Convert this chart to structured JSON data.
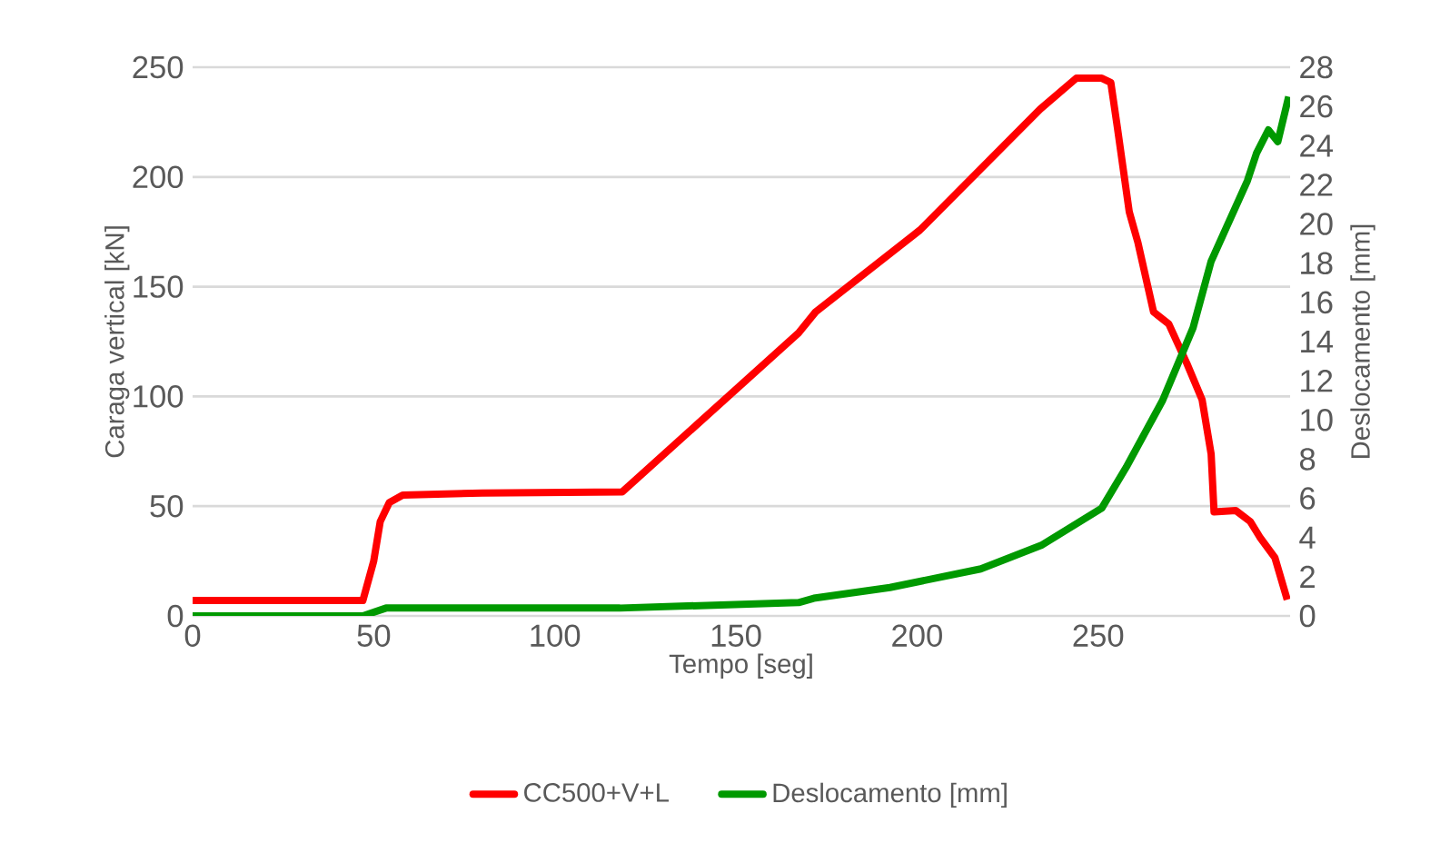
{
  "chart_data": {
    "type": "line",
    "xlabel": "Tempo [seg]",
    "ylabel": "Caraga vertical [kN]",
    "y2label": "Deslocamento  [mm]",
    "xlim": [
      0,
      303
    ],
    "xticks": [
      0,
      50,
      100,
      150,
      200,
      250
    ],
    "ylim": [
      0,
      250
    ],
    "yticks": [
      0,
      50,
      100,
      150,
      200,
      250
    ],
    "y2lim": [
      0,
      28
    ],
    "y2ticks": [
      0,
      2,
      4,
      6,
      8,
      10,
      12,
      14,
      16,
      18,
      20,
      22,
      24,
      26,
      28
    ],
    "grid": "y",
    "legend": "bottom",
    "marker": "none",
    "line_style": "solid",
    "series": [
      {
        "name": "CC500+V+L",
        "color": "#ff0000",
        "x": [
          0,
          47,
          50,
          51.8,
          54.3,
          58,
          80,
          118.6,
          167.3,
          172,
          200.8,
          234,
          244,
          251,
          253.5,
          255.3,
          258.6,
          261,
          265.3,
          269.5,
          274.5,
          278.7,
          281.2,
          282,
          288,
          292,
          294.6,
          298.8,
          302.2
        ],
        "values": [
          7,
          7,
          25,
          43,
          51.6,
          55,
          56,
          56.5,
          128.9,
          138.5,
          175.8,
          230.9,
          245,
          245,
          243,
          222.7,
          184,
          170,
          138.5,
          133,
          115,
          98.5,
          73.7,
          47.4,
          48,
          43,
          36,
          26.5,
          7.4
        ]
      },
      {
        "name": "Deslocamento  [mm]",
        "color": "#009900",
        "axis": "y2",
        "x": [
          0,
          47,
          53.4,
          118,
          167.3,
          171.5,
          192.5,
          217.6,
          234.3,
          251,
          257.8,
          267.8,
          276.2,
          281.2,
          291.2,
          293.7,
          297,
          299.6,
          302.6
        ],
        "values": [
          0,
          0,
          0.4,
          0.4,
          0.68,
          0.9,
          1.45,
          2.4,
          3.6,
          5.5,
          7.6,
          11.0,
          14.7,
          18.1,
          22.2,
          23.6,
          24.8,
          24.2,
          26.5
        ]
      }
    ]
  }
}
